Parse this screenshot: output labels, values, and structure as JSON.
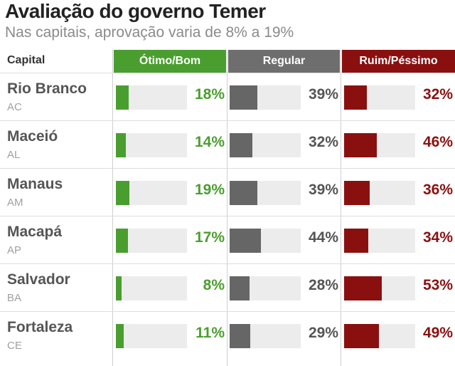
{
  "title": "Avaliação do governo Temer",
  "subtitle": "Nas capitais, aprovação varia de 8% a 19%",
  "columns": {
    "capital": "Capital",
    "good": "Ótimo/Bom",
    "regular": "Regular",
    "bad": "Ruim/Péssimo"
  },
  "colors": {
    "good": "#4a9e2f",
    "regular": "#666666",
    "bad": "#8a1010",
    "track": "#ececec"
  },
  "chart_data": {
    "type": "bar",
    "title": "Avaliação do governo Temer",
    "subtitle": "Nas capitais, aprovação varia de 8% a 19%",
    "categories": [
      "Rio Branco",
      "Maceió",
      "Manaus",
      "Macapá",
      "Salvador",
      "Fortaleza"
    ],
    "states": [
      "AC",
      "AL",
      "AM",
      "AP",
      "BA",
      "CE"
    ],
    "series": [
      {
        "name": "Ótimo/Bom",
        "values": [
          18,
          14,
          19,
          17,
          8,
          11
        ],
        "labels": [
          "18%",
          "14%",
          "19%",
          "17%",
          "8%",
          "11%"
        ]
      },
      {
        "name": "Regular",
        "values": [
          39,
          32,
          39,
          44,
          28,
          29
        ],
        "labels": [
          "39%",
          "32%",
          "39%",
          "44%",
          "28%",
          "29%"
        ]
      },
      {
        "name": "Ruim/Péssimo",
        "values": [
          32,
          46,
          36,
          34,
          53,
          49
        ],
        "labels": [
          "32%",
          "46%",
          "36%",
          "34%",
          "53%",
          "49%"
        ]
      }
    ],
    "ylim": [
      0,
      100
    ]
  }
}
